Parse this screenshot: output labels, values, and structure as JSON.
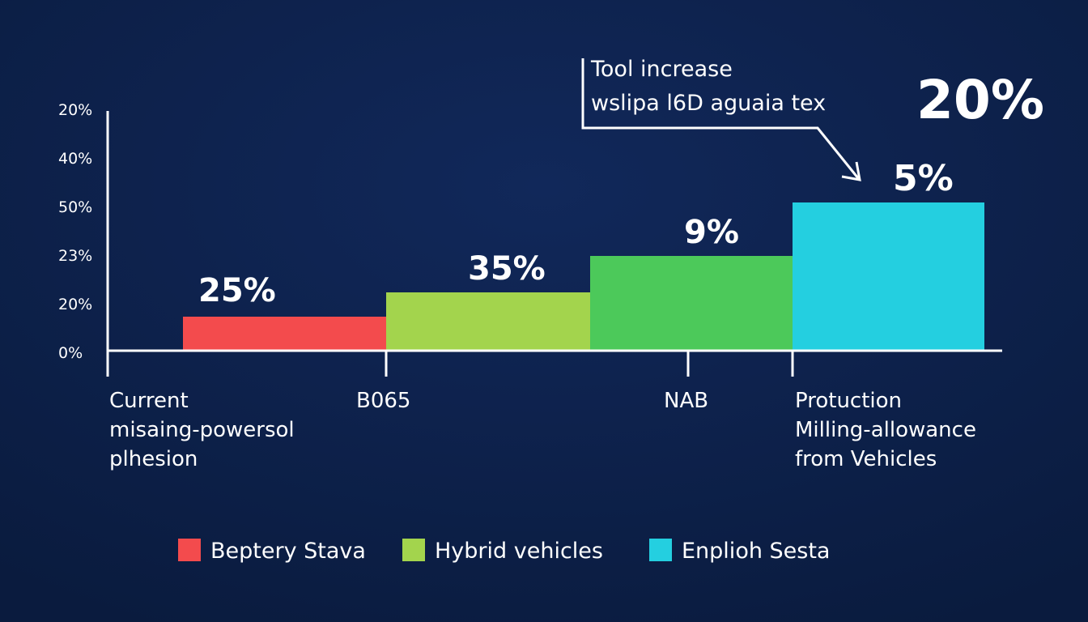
{
  "chart_data": {
    "type": "bar",
    "title": "",
    "xlabel": "",
    "ylabel": "",
    "ylim": [
      0,
      5
    ],
    "grid": false,
    "y_ticks": [
      {
        "value": 0,
        "label": "0%"
      },
      {
        "value": 1,
        "label": "20%"
      },
      {
        "value": 2,
        "label": "23%"
      },
      {
        "value": 3,
        "label": "50%"
      },
      {
        "value": 4,
        "label": "40%"
      },
      {
        "value": 5,
        "label": "20%"
      }
    ],
    "categories": [
      "Current misaing-powersol plhesion",
      "B065",
      "NAB",
      "Protuction Milling-allowance from Vehicles"
    ],
    "category_label_lines": [
      [
        "Current",
        "misaing-powersol",
        "plhesion"
      ],
      [
        "B065"
      ],
      [
        "NAB"
      ],
      [
        "Protuction",
        "Milling-allowance",
        "from Vehicles"
      ]
    ],
    "values": [
      0.7,
      1.2,
      1.95,
      3.05
    ],
    "data_labels": [
      "25%",
      "35%",
      "9%",
      "5%"
    ],
    "bar_colors": [
      "#f34b4d",
      "#a3d44d",
      "#4cc95a",
      "#24cfe0"
    ],
    "legend": {
      "placement": "bottom",
      "entries": [
        {
          "label": "Beptery Stava",
          "color": "#f34b4d"
        },
        {
          "label": "Hybrid vehicles",
          "color": "#a3d44d"
        },
        {
          "label": "Enplioh Sesta",
          "color": "#24cfe0"
        }
      ]
    },
    "annotation": {
      "lines": [
        "Tool increase",
        "wslipa l6D aguaia tex"
      ],
      "highlight": "20%"
    }
  }
}
